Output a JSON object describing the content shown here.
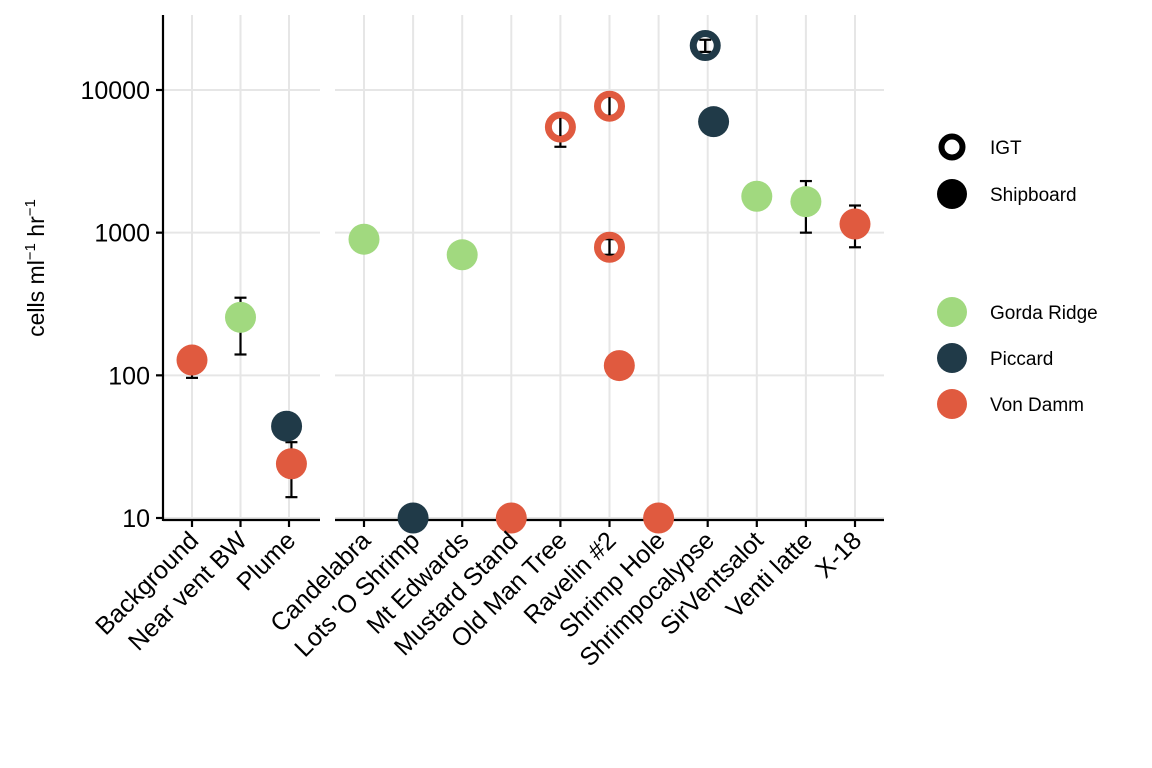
{
  "chart_data": {
    "type": "scatter",
    "ylabel": {
      "base": "cells ml",
      "sup1": "−1",
      "mid": " hr",
      "sup2": "−1"
    },
    "y_scale": "log",
    "ylim": [
      10,
      35000
    ],
    "y_ticks": [
      10,
      100,
      1000,
      10000
    ],
    "y_tick_labels": [
      "10",
      "100",
      "1000",
      "10000"
    ],
    "grid": true,
    "legend_position": "right",
    "panels": [
      {
        "categories": [
          "Background",
          "Near vent BW",
          "Plume"
        ]
      },
      {
        "categories": [
          "Candelabra",
          "Lots 'O Shrimp",
          "Mt Edwards",
          "Mustard Stand",
          "Old Man Tree",
          "Ravelin #2",
          "Shrimp Hole",
          "Shrimpocalypse",
          "SirVentsalot",
          "Venti latte",
          "X-18"
        ]
      }
    ],
    "legend_shape": {
      "entries": [
        {
          "label": "IGT",
          "fill": "hollow"
        },
        {
          "label": "Shipboard",
          "fill": "solid"
        }
      ]
    },
    "legend_color": {
      "entries": [
        {
          "label": "Gorda Ridge",
          "color": "#a1d97f"
        },
        {
          "label": "Piccard",
          "color": "#203a48"
        },
        {
          "label": "Von Damm",
          "color": "#e05a3f"
        }
      ]
    },
    "points": [
      {
        "panel": 0,
        "category": "Background",
        "site": "Von Damm",
        "method": "Shipboard",
        "y": 128,
        "err": [
          96,
          130
        ],
        "jitter": 0
      },
      {
        "panel": 0,
        "category": "Near vent BW",
        "site": "Gorda Ridge",
        "method": "Shipboard",
        "y": 255,
        "err": [
          140,
          350
        ],
        "jitter": 0
      },
      {
        "panel": 0,
        "category": "Plume",
        "site": "Piccard",
        "method": "Shipboard",
        "y": 44,
        "err": null,
        "jitter": -0.05
      },
      {
        "panel": 0,
        "category": "Plume",
        "site": "Von Damm",
        "method": "Shipboard",
        "y": 24,
        "err": [
          14,
          34
        ],
        "jitter": 0.05
      },
      {
        "panel": 1,
        "category": "Candelabra",
        "site": "Gorda Ridge",
        "method": "Shipboard",
        "y": 900,
        "err": null,
        "jitter": 0
      },
      {
        "panel": 1,
        "category": "Lots 'O Shrimp",
        "site": "Piccard",
        "method": "Shipboard",
        "y": 10,
        "err": null,
        "jitter": 0
      },
      {
        "panel": 1,
        "category": "Mt Edwards",
        "site": "Gorda Ridge",
        "method": "Shipboard",
        "y": 700,
        "err": null,
        "jitter": 0
      },
      {
        "panel": 1,
        "category": "Mustard Stand",
        "site": "Von Damm",
        "method": "Shipboard",
        "y": 10,
        "err": null,
        "jitter": 0
      },
      {
        "panel": 1,
        "category": "Old Man Tree",
        "site": "Von Damm",
        "method": "IGT",
        "y": 5500,
        "err": [
          4000,
          6600
        ],
        "jitter": 0
      },
      {
        "panel": 1,
        "category": "Ravelin #2",
        "site": "Von Damm",
        "method": "IGT",
        "y": 7700,
        "err": [
          6600,
          9200
        ],
        "jitter": 0
      },
      {
        "panel": 1,
        "category": "Ravelin #2",
        "site": "Von Damm",
        "method": "IGT",
        "y": 790,
        "err": [
          700,
          900
        ],
        "jitter": 0
      },
      {
        "panel": 1,
        "category": "Ravelin #2",
        "site": "Von Damm",
        "method": "Shipboard",
        "y": 117,
        "err": null,
        "jitter": 0.2
      },
      {
        "panel": 1,
        "category": "Shrimp Hole",
        "site": "Von Damm",
        "method": "Shipboard",
        "y": 10,
        "err": null,
        "jitter": 0
      },
      {
        "panel": 1,
        "category": "Shrimpocalypse",
        "site": "Piccard",
        "method": "IGT",
        "y": 20500,
        "err": [
          18500,
          22500
        ],
        "jitter": -0.05
      },
      {
        "panel": 1,
        "category": "Shrimpocalypse",
        "site": "Piccard",
        "method": "Shipboard",
        "y": 6000,
        "err": null,
        "jitter": 0.12
      },
      {
        "panel": 1,
        "category": "SirVentsalot",
        "site": "Gorda Ridge",
        "method": "Shipboard",
        "y": 1800,
        "err": null,
        "jitter": 0
      },
      {
        "panel": 1,
        "category": "Venti latte",
        "site": "Gorda Ridge",
        "method": "Shipboard",
        "y": 1650,
        "err": [
          1000,
          2300
        ],
        "jitter": 0
      },
      {
        "panel": 1,
        "category": "X-18",
        "site": "Von Damm",
        "method": "Shipboard",
        "y": 1150,
        "err": [
          790,
          1550
        ],
        "jitter": 0
      }
    ]
  }
}
